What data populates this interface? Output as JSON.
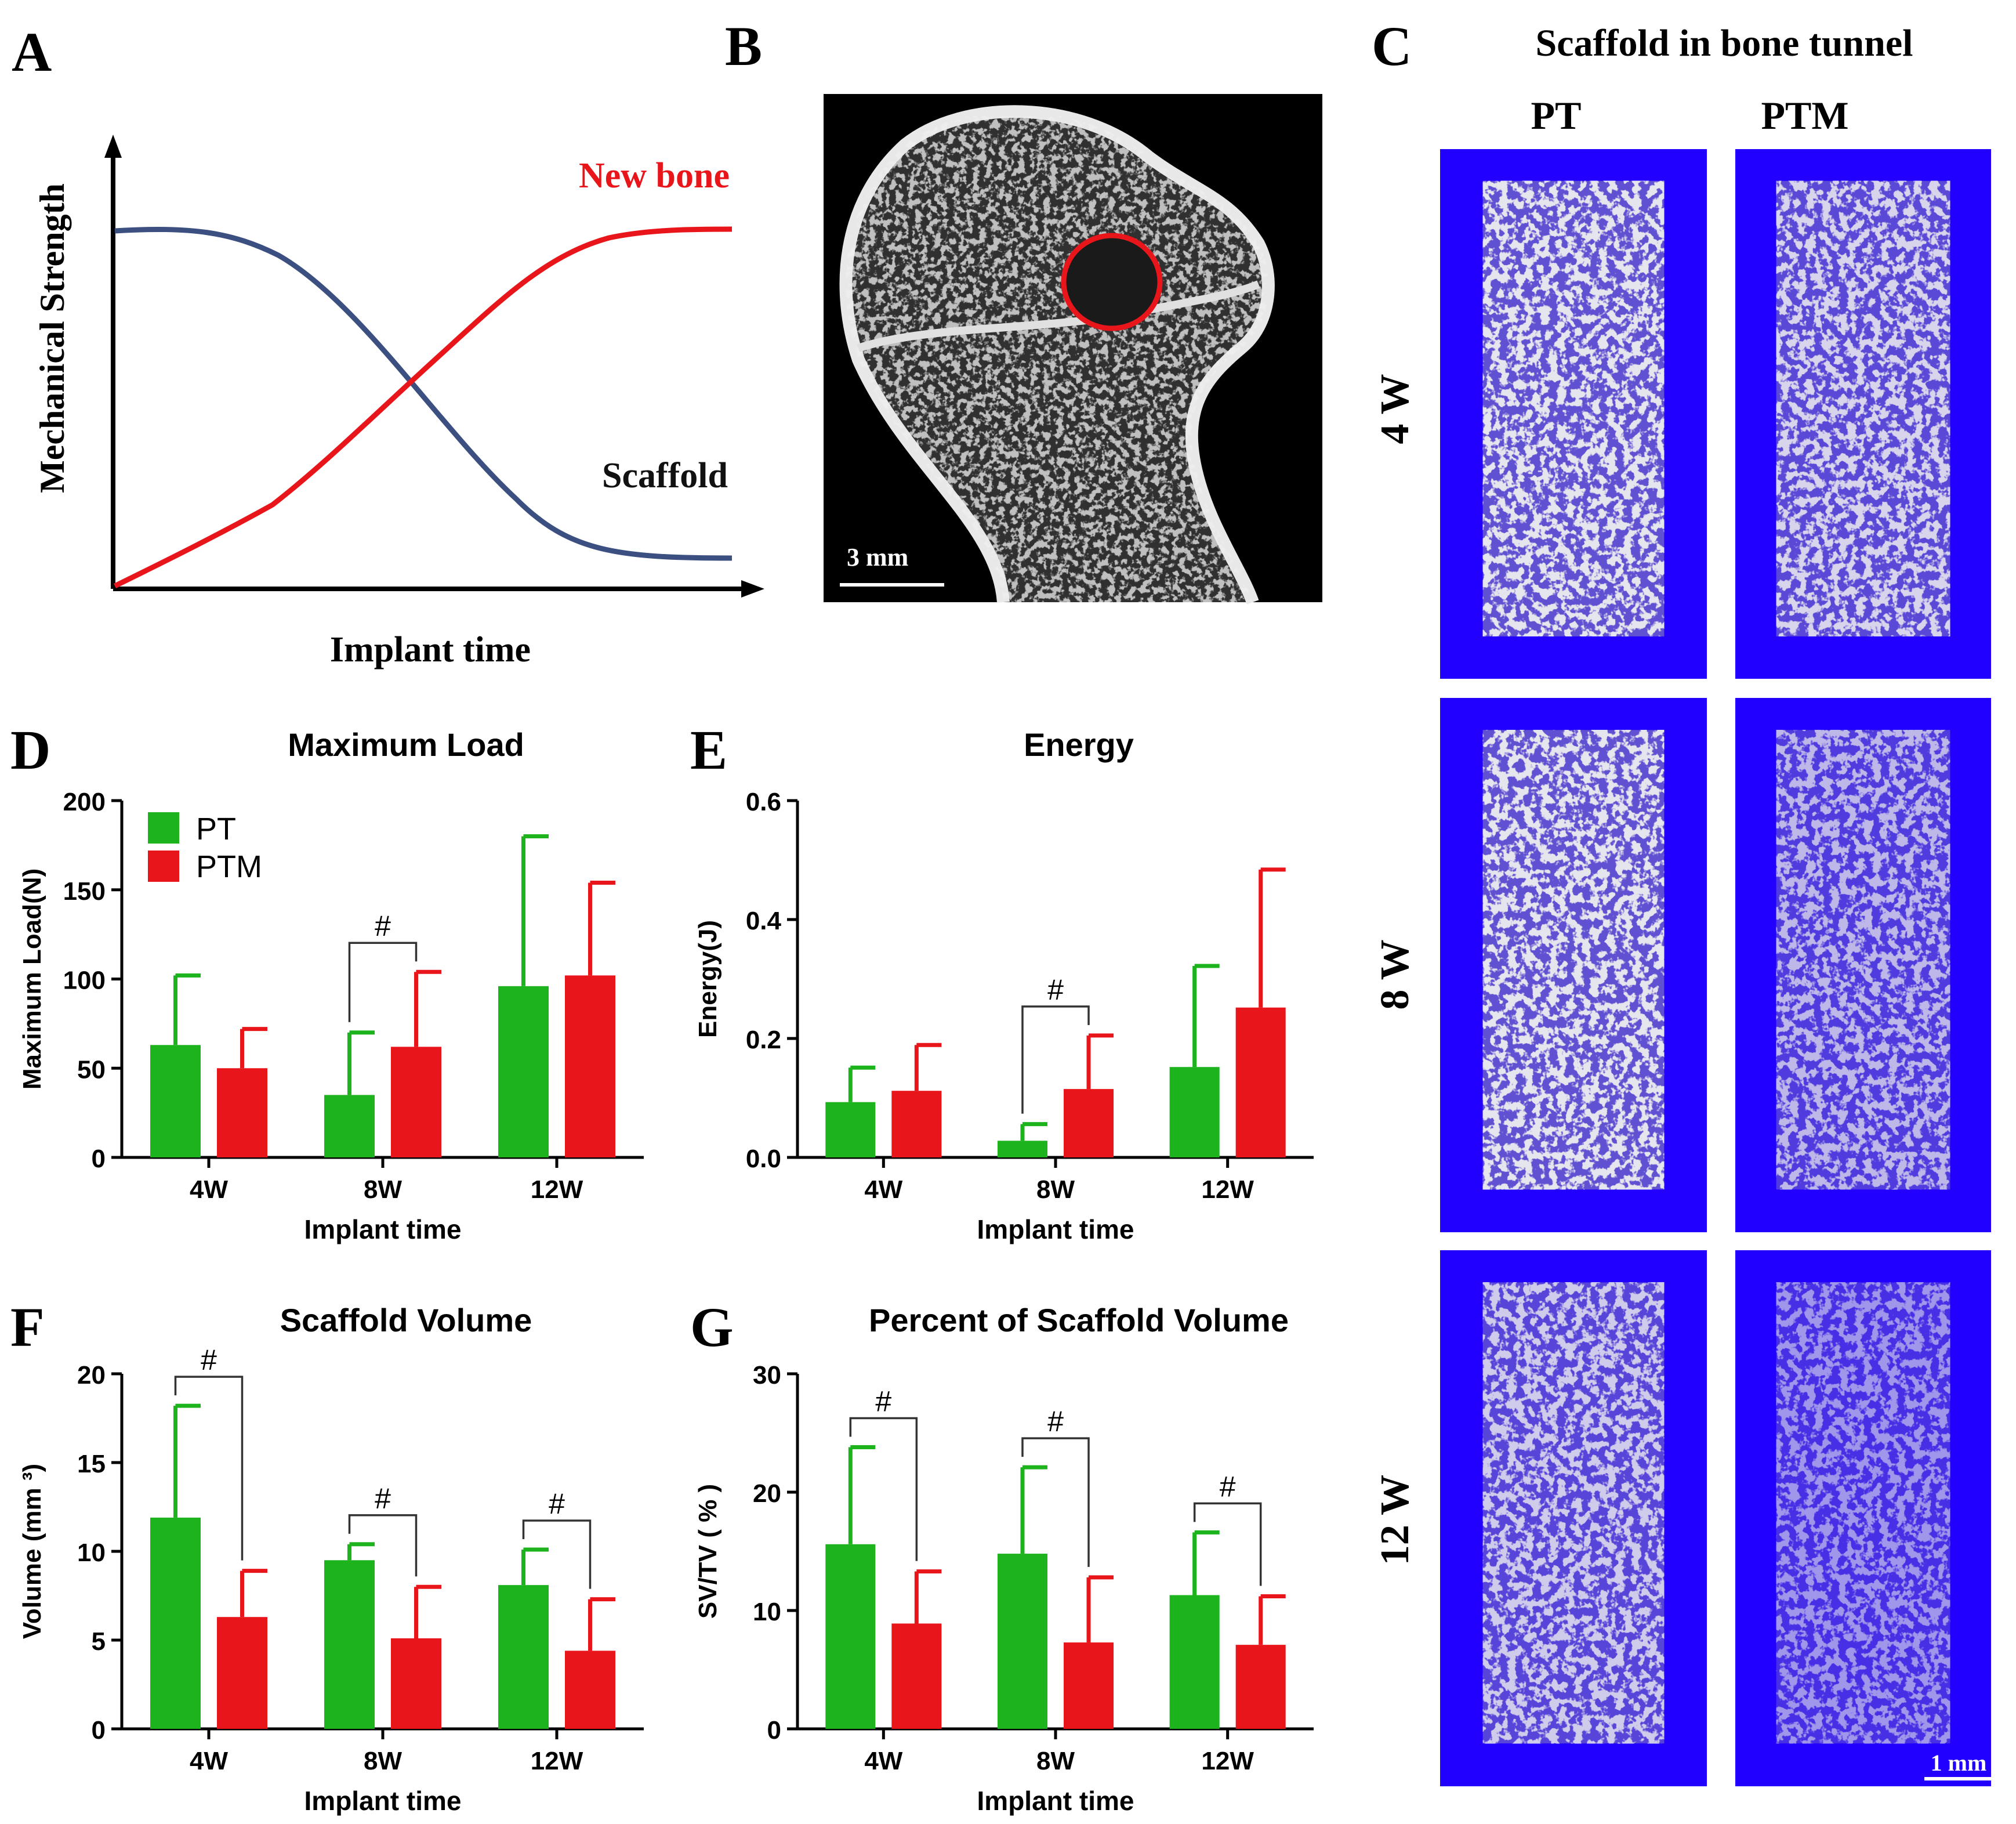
{
  "colors": {
    "pt": "#1db31d",
    "ptm": "#e8161b",
    "scaffold_curve": "#3b4f80",
    "newbone_curve": "#e8161b",
    "ct_background": "#2200ff"
  },
  "panel_labels": {
    "A": "A",
    "B": "B",
    "C": "C",
    "D": "D",
    "E": "E",
    "F": "F",
    "G": "G"
  },
  "panel_a": {
    "ylabel": "Mechanical Strength",
    "xlabel": "Implant time",
    "newbone_label": "New bone",
    "scaffold_label": "Scaffold",
    "curves": [
      {
        "name": "Scaffold",
        "trend": "decreasing sigmoid",
        "start": 0.9,
        "end": 0.06
      },
      {
        "name": "New bone",
        "trend": "increasing sigmoid",
        "start": 0.0,
        "end": 0.9
      }
    ]
  },
  "panel_b": {
    "scale_bar": "3 mm"
  },
  "panel_c": {
    "title": "Scaffold in bone tunnel",
    "columns": [
      "PT",
      "PTM"
    ],
    "rows": [
      "4 W",
      "8 W",
      "12 W"
    ],
    "scale_bar": "1 mm"
  },
  "legend": {
    "pt": "PT",
    "ptm": "PTM"
  },
  "sig_mark": "#",
  "chart_data": [
    {
      "id": "D",
      "type": "bar",
      "title": "Maximum Load",
      "xlabel": "Implant time",
      "ylabel": "Maximum Load(N)",
      "categories": [
        "4W",
        "8W",
        "12W"
      ],
      "ylim": [
        0,
        200
      ],
      "yticks": [
        "0",
        "50",
        "100",
        "150",
        "200"
      ],
      "series": [
        {
          "name": "PT",
          "values": [
            63,
            35,
            96
          ],
          "error": [
            39,
            35,
            84
          ]
        },
        {
          "name": "PTM",
          "values": [
            50,
            62,
            102
          ],
          "error": [
            22,
            42,
            52
          ]
        }
      ],
      "significance": [
        1
      ]
    },
    {
      "id": "E",
      "type": "bar",
      "title": "Energy",
      "xlabel": "Implant time",
      "ylabel": "Energy(J)",
      "categories": [
        "4W",
        "8W",
        "12W"
      ],
      "ylim": [
        0,
        0.6
      ],
      "yticks": [
        "0.0",
        "0.2",
        "0.4",
        "0.6"
      ],
      "series": [
        {
          "name": "PT",
          "values": [
            0.093,
            0.028,
            0.152
          ],
          "error": [
            0.058,
            0.028,
            0.17
          ]
        },
        {
          "name": "PTM",
          "values": [
            0.112,
            0.115,
            0.252
          ],
          "error": [
            0.077,
            0.09,
            0.232
          ]
        }
      ],
      "significance": [
        1
      ]
    },
    {
      "id": "F",
      "type": "bar",
      "title": "Scaffold Volume",
      "xlabel": "Implant time",
      "ylabel": "Volume (mm ³)",
      "categories": [
        "4W",
        "8W",
        "12W"
      ],
      "ylim": [
        0,
        20
      ],
      "yticks": [
        "0",
        "5",
        "10",
        "15",
        "20"
      ],
      "series": [
        {
          "name": "PT",
          "values": [
            11.9,
            9.5,
            8.1
          ],
          "error": [
            6.3,
            0.9,
            2.0
          ]
        },
        {
          "name": "PTM",
          "values": [
            6.3,
            5.1,
            4.4
          ],
          "error": [
            2.6,
            2.9,
            2.9
          ]
        }
      ],
      "significance": [
        0,
        1,
        2
      ]
    },
    {
      "id": "G",
      "type": "bar",
      "title": "Percent of Scaffold Volume",
      "xlabel": "Implant time",
      "ylabel": "SV/TV ( % )",
      "categories": [
        "4W",
        "8W",
        "12W"
      ],
      "ylim": [
        0,
        30
      ],
      "yticks": [
        "0",
        "10",
        "20",
        "30"
      ],
      "series": [
        {
          "name": "PT",
          "values": [
            15.6,
            14.8,
            11.3
          ],
          "error": [
            8.2,
            7.3,
            5.3
          ]
        },
        {
          "name": "PTM",
          "values": [
            8.9,
            7.3,
            7.1
          ],
          "error": [
            4.4,
            5.5,
            4.1
          ]
        }
      ],
      "significance": [
        0,
        1,
        2
      ]
    }
  ]
}
